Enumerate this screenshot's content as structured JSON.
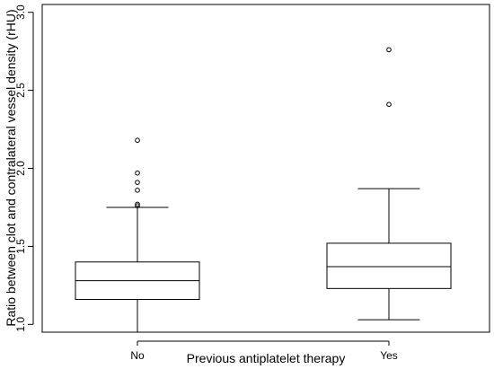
{
  "chart_data": {
    "type": "boxplot",
    "title": "",
    "xlabel": "Previous antiplatelet therapy",
    "ylabel": "Ratio between clot and contralateral vessel density (rHU)",
    "ylim": [
      0.95,
      3.05
    ],
    "yticks": [
      "1.0",
      "1.5",
      "2.0",
      "2.5",
      "3.0"
    ],
    "categories": [
      "No",
      "Yes"
    ],
    "boxes": [
      {
        "category": "No",
        "whisker_low": 0.95,
        "q1": 1.16,
        "median": 1.28,
        "q3": 1.4,
        "whisker_high": 1.75,
        "outliers": [
          1.76,
          1.77,
          1.86,
          1.91,
          1.97,
          2.18
        ]
      },
      {
        "category": "Yes",
        "whisker_low": 1.03,
        "q1": 1.23,
        "median": 1.37,
        "q3": 1.52,
        "whisker_high": 1.87,
        "outliers": [
          2.41,
          2.76
        ]
      }
    ],
    "grid": false,
    "legend": "none"
  }
}
